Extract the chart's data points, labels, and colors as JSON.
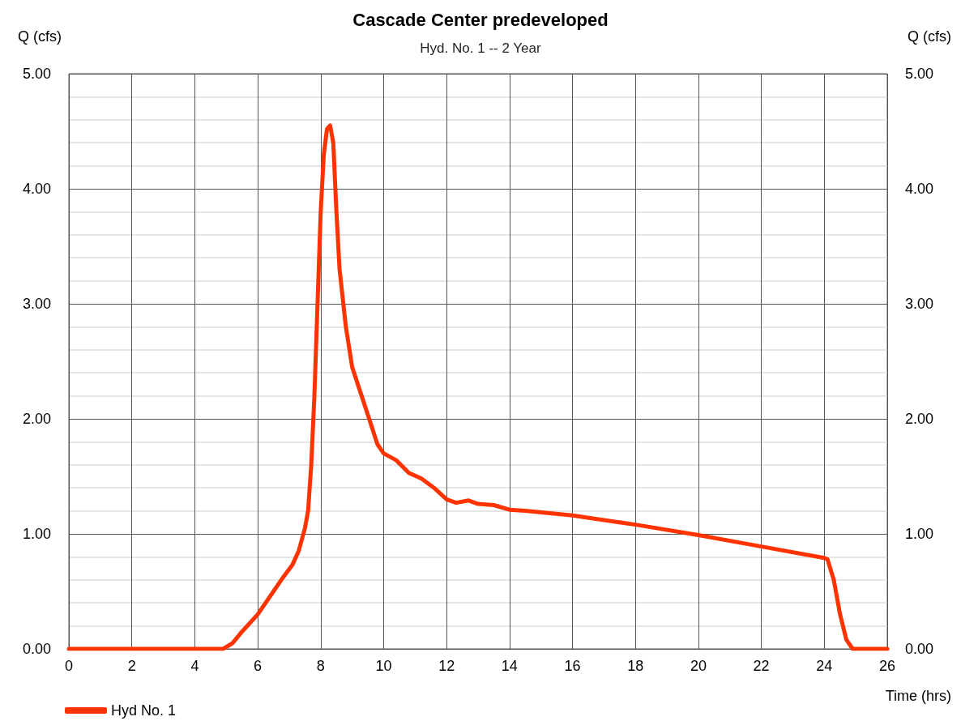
{
  "chart_data": {
    "type": "line",
    "title": "Cascade Center predeveloped",
    "subtitle": "Hyd. No. 1 -- 2 Year",
    "xlabel": "Time (hrs)",
    "ylabel": "Q (cfs)",
    "y2label": "Q (cfs)",
    "xlim": [
      0,
      26
    ],
    "xticks": [
      0,
      2,
      4,
      6,
      8,
      10,
      12,
      14,
      16,
      18,
      20,
      22,
      24,
      26
    ],
    "ylim": [
      0,
      5
    ],
    "yticks": [
      {
        "value": 0,
        "label": "0.00"
      },
      {
        "value": 1,
        "label": "1.00"
      },
      {
        "value": 2,
        "label": "2.00"
      },
      {
        "value": 3,
        "label": "3.00"
      },
      {
        "value": 4,
        "label": "4.00"
      },
      {
        "value": 5,
        "label": "5.00"
      }
    ],
    "y2lim": [
      0,
      5
    ],
    "y2ticks": [
      {
        "value": 0,
        "label": "0.00"
      },
      {
        "value": 1,
        "label": "1.00"
      },
      {
        "value": 2,
        "label": "2.00"
      },
      {
        "value": 3,
        "label": "3.00"
      },
      {
        "value": 4,
        "label": "4.00"
      },
      {
        "value": 5,
        "label": "5.00"
      }
    ],
    "grid": true,
    "legend": "bottom left",
    "marker": "none",
    "line_style": "solid",
    "series": [
      {
        "name": "Hyd No. 1",
        "color": "#ff3300",
        "x": [
          0,
          4.9,
          5.2,
          5.5,
          6,
          6.5,
          6.8,
          7.1,
          7.3,
          7.5,
          7.6,
          7.7,
          7.8,
          7.9,
          8.0,
          8.1,
          8.2,
          8.3,
          8.4,
          8.5,
          8.6,
          8.8,
          9.0,
          9.3,
          9.6,
          9.8,
          10.0,
          10.4,
          10.8,
          11.2,
          11.6,
          12.0,
          12.3,
          12.7,
          13.0,
          13.5,
          14.0,
          14.5,
          16,
          18,
          20,
          22,
          24,
          24.1,
          24.3,
          24.5,
          24.7,
          24.9,
          26
        ],
        "values": [
          0,
          0,
          0.05,
          0.15,
          0.3,
          0.5,
          0.62,
          0.73,
          0.85,
          1.05,
          1.2,
          1.6,
          2.2,
          3.0,
          3.8,
          4.3,
          4.52,
          4.55,
          4.4,
          3.8,
          3.3,
          2.8,
          2.45,
          2.2,
          1.95,
          1.78,
          1.7,
          1.64,
          1.53,
          1.48,
          1.4,
          1.3,
          1.27,
          1.29,
          1.26,
          1.25,
          1.21,
          1.2,
          1.16,
          1.08,
          0.99,
          0.89,
          0.79,
          0.78,
          0.6,
          0.3,
          0.08,
          0,
          0
        ]
      }
    ]
  }
}
